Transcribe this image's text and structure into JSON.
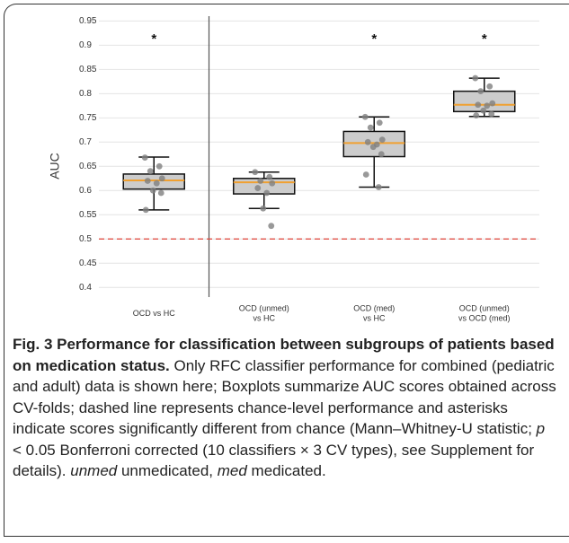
{
  "chart_data": {
    "type": "box",
    "y_label": "AUC",
    "categories": [
      "OCD vs HC",
      "OCD (unmed)\nvs HC",
      "OCD (med)\nvs HC",
      "OCD (unmed)\nvs OCD (med)"
    ],
    "boxes": [
      {
        "whisker_low": 0.56,
        "q1": 0.603,
        "median": 0.621,
        "q3": 0.634,
        "whisker_high": 0.669,
        "points": [
          0.668,
          0.65,
          0.64,
          0.625,
          0.62,
          0.615,
          0.6,
          0.595,
          0.56
        ]
      },
      {
        "whisker_low": 0.563,
        "q1": 0.593,
        "median": 0.617,
        "q3": 0.625,
        "whisker_high": 0.638,
        "points": [
          0.638,
          0.628,
          0.62,
          0.615,
          0.605,
          0.595,
          0.563,
          0.527
        ]
      },
      {
        "whisker_low": 0.607,
        "q1": 0.67,
        "median": 0.698,
        "q3": 0.722,
        "whisker_high": 0.752,
        "points": [
          0.752,
          0.74,
          0.73,
          0.705,
          0.7,
          0.695,
          0.69,
          0.675,
          0.633,
          0.607
        ]
      },
      {
        "whisker_low": 0.753,
        "q1": 0.763,
        "median": 0.777,
        "q3": 0.805,
        "whisker_high": 0.832,
        "points": [
          0.832,
          0.815,
          0.805,
          0.78,
          0.777,
          0.775,
          0.765,
          0.758,
          0.755
        ]
      }
    ],
    "significant": [
      true,
      false,
      true,
      true
    ],
    "significance_marker": "*",
    "chance_level": 0.5,
    "chance_color": "#e0443a",
    "box_color": "#cccccc",
    "median_color": "#f0a030",
    "point_color": "#808080",
    "ylim": [
      0.38,
      0.96
    ],
    "yticks": [
      0.4,
      0.45,
      0.5,
      0.55,
      0.6,
      0.65,
      0.7,
      0.75,
      0.8,
      0.85,
      0.9,
      0.95
    ],
    "grid": true
  },
  "caption": {
    "segments": [
      "Fig. 3 Performance for classification between subgroups of patients based on medication status.",
      " Only RFC classifier performance for combined (pediatric and adult) data is shown here; Boxplots summarize AUC scores obtained across CV-folds; dashed line represents chance-level performance and asterisks indicate scores significantly different from chance (Mann–Whitney-U statistic; ",
      "p",
      " < 0.05 Bonferroni corrected (10 classifiers × 3 CV types), see Supplement for details). ",
      "unmed",
      " unmedicated, ",
      "med",
      " medicated."
    ]
  }
}
